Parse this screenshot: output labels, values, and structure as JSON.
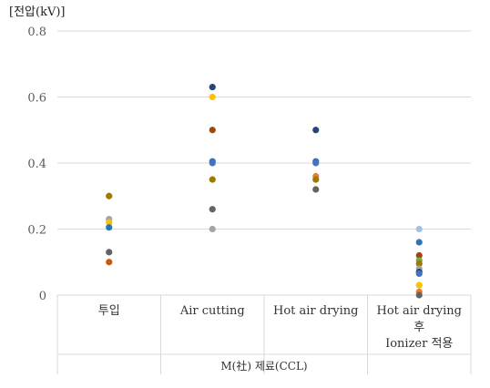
{
  "chart_data": {
    "type": "scatter",
    "ylabel": "[전압(kV)]",
    "xlabel": "M(社) 제료(CCL)",
    "ylim": [
      0,
      0.8
    ],
    "yticks": [
      0,
      0.2,
      0.4,
      0.6,
      0.8
    ],
    "ytick_labels": [
      "0",
      "0.2",
      "0.4",
      "0.6",
      "0.8"
    ],
    "grid": true,
    "categories": [
      {
        "lines": [
          "투입"
        ]
      },
      {
        "lines": [
          "Air cutting"
        ]
      },
      {
        "lines": [
          "Hot air drying"
        ]
      },
      {
        "lines": [
          "Hot air drying",
          "후",
          "Ionizer 적용"
        ]
      }
    ],
    "points": [
      {
        "category": 0,
        "y": 0.3,
        "color": "#9c7a00"
      },
      {
        "category": 0,
        "y": 0.23,
        "color": "#a5a5a5"
      },
      {
        "category": 0,
        "y": 0.22,
        "color": "#ffc000"
      },
      {
        "category": 0,
        "y": 0.205,
        "color": "#2e75b6"
      },
      {
        "category": 0,
        "y": 0.13,
        "color": "#636363"
      },
      {
        "category": 0,
        "y": 0.1,
        "color": "#c55a11"
      },
      {
        "category": 1,
        "y": 0.63,
        "color": "#264478"
      },
      {
        "category": 1,
        "y": 0.6,
        "color": "#ffc000"
      },
      {
        "category": 1,
        "y": 0.5,
        "color": "#9e480e"
      },
      {
        "category": 1,
        "y": 0.405,
        "color": "#2e75b6"
      },
      {
        "category": 1,
        "y": 0.4,
        "color": "#4472c4"
      },
      {
        "category": 1,
        "y": 0.35,
        "color": "#9c7a00"
      },
      {
        "category": 1,
        "y": 0.26,
        "color": "#636363"
      },
      {
        "category": 1,
        "y": 0.2,
        "color": "#a5a5a5"
      },
      {
        "category": 2,
        "y": 0.5,
        "color": "#264478"
      },
      {
        "category": 2,
        "y": 0.405,
        "color": "#2e75b6"
      },
      {
        "category": 2,
        "y": 0.4,
        "color": "#4472c4"
      },
      {
        "category": 2,
        "y": 0.36,
        "color": "#ed7d31"
      },
      {
        "category": 2,
        "y": 0.35,
        "color": "#9c7a00"
      },
      {
        "category": 2,
        "y": 0.32,
        "color": "#636363"
      },
      {
        "category": 3,
        "y": 0.2,
        "color": "#9dc3e6"
      },
      {
        "category": 3,
        "y": 0.16,
        "color": "#2e75b6"
      },
      {
        "category": 3,
        "y": 0.12,
        "color": "#9e480e"
      },
      {
        "category": 3,
        "y": 0.105,
        "color": "#70ad47"
      },
      {
        "category": 3,
        "y": 0.095,
        "color": "#9c7a00"
      },
      {
        "category": 3,
        "y": 0.08,
        "color": "#a5a5a5"
      },
      {
        "category": 3,
        "y": 0.07,
        "color": "#264478"
      },
      {
        "category": 3,
        "y": 0.065,
        "color": "#4472c4"
      },
      {
        "category": 3,
        "y": 0.03,
        "color": "#ffc000"
      },
      {
        "category": 3,
        "y": 0.01,
        "color": "#ed7d31"
      },
      {
        "category": 3,
        "y": 0.0,
        "color": "#636363"
      }
    ]
  }
}
